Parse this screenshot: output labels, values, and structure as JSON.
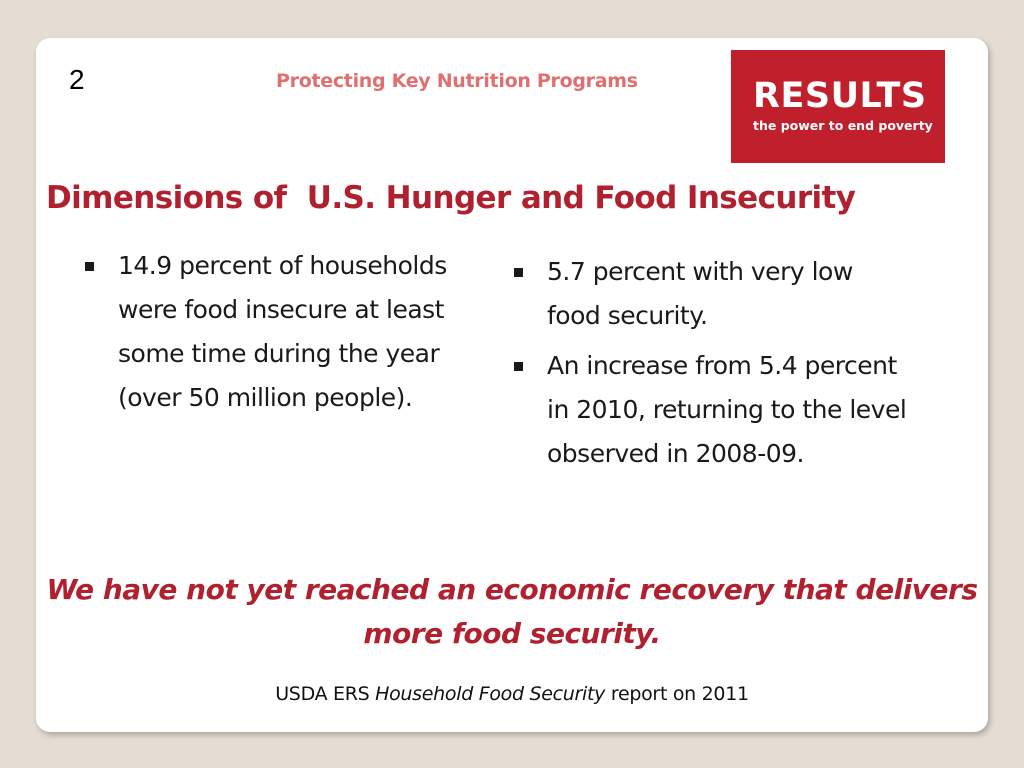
{
  "slide": {
    "number": "2",
    "header_title": "Protecting Key Nutrition Programs",
    "logo": {
      "name": "RESULTS",
      "tagline": "the power to end poverty",
      "background_color": "#c0202c"
    },
    "title": "Dimensions of  U.S. Hunger and Food Insecurity",
    "left_bullets": [
      {
        "text": "14.9 percent of households were food insecure at least some time during the year (over 50 million people)."
      }
    ],
    "right_bullets": [
      {
        "text": "5.7 percent with very low food security."
      },
      {
        "text": "An increase from 5.4 percent in 2010, returning to the level observed in 2008-09."
      }
    ],
    "conclusion": "We have not yet reached an economic recovery that delivers more food security.",
    "source": {
      "prefix": "USDA ERS ",
      "italic": "Household Food Security",
      "suffix": " report on 2011"
    },
    "accent_color": "#b0202e"
  }
}
